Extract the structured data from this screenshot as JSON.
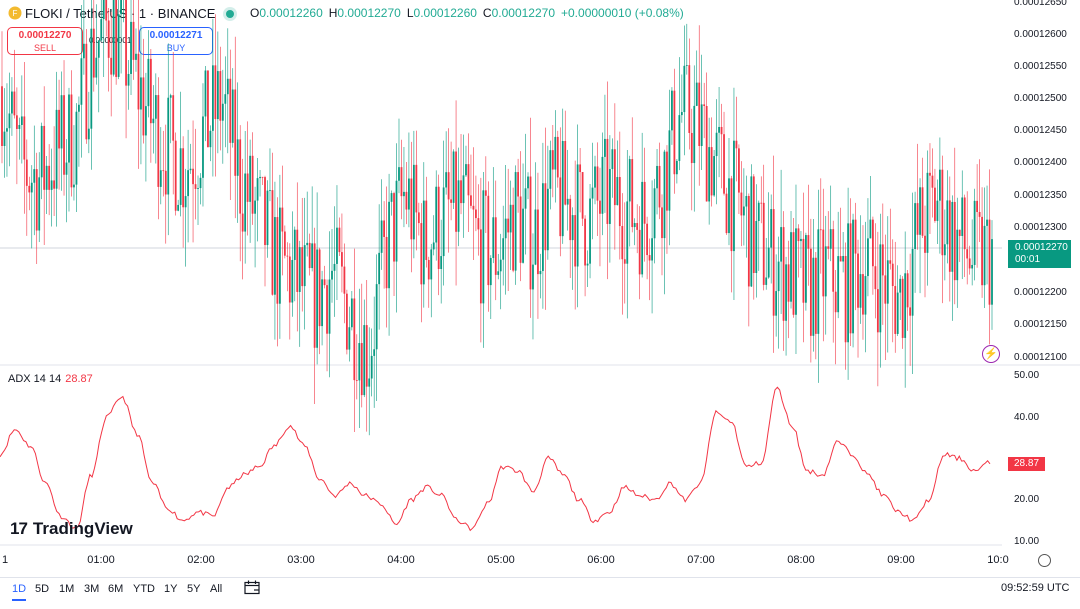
{
  "header": {
    "symbol": "FLOKI / TetherUS · 1 · BINANCE",
    "ohlc": [
      {
        "key": "O",
        "value": "0.00012260"
      },
      {
        "key": "H",
        "value": "0.00012270"
      },
      {
        "key": "L",
        "value": "0.00012260"
      },
      {
        "key": "C",
        "value": "0.00012270"
      }
    ],
    "change": "+0.00000010 (+0.08%)"
  },
  "trade": {
    "sell_price": "0.00012270",
    "sell_label": "SELL",
    "buy_price": "0.00012271",
    "buy_label": "BUY",
    "spread": "0.00000001"
  },
  "price_scale": [
    "0.00012650",
    "0.00012600",
    "0.00012550",
    "0.00012500",
    "0.00012450",
    "0.00012400",
    "0.00012350",
    "0.00012300",
    "0.00012200",
    "0.00012150",
    "0.00012100"
  ],
  "last_price": {
    "price": "0.00012270",
    "countdown": "00:01"
  },
  "indicator": {
    "name": "ADX 14 14",
    "value": "28.87"
  },
  "adx_scale": [
    "50.00",
    "40.00",
    "20.00",
    "10.00"
  ],
  "time_axis": [
    "1",
    "01:00",
    "02:00",
    "03:00",
    "04:00",
    "05:00",
    "06:00",
    "07:00",
    "08:00",
    "09:00",
    "10:0"
  ],
  "branding": "TradingView",
  "toolbar": {
    "ranges": [
      "1D",
      "5D",
      "1M",
      "3M",
      "6M",
      "YTD",
      "1Y",
      "5Y",
      "All"
    ],
    "active_range": "1D",
    "clock": "09:52:59 UTC"
  },
  "colors": {
    "up": "#089981",
    "down": "#f23645",
    "adx": "#f23645",
    "accent": "#2962ff"
  },
  "chart_data": [
    {
      "type": "candlestick",
      "title": "FLOKI / TetherUS · 1 · BINANCE",
      "ylim": [
        0.000121,
        0.0001265
      ],
      "close_series": [
        0.0001252,
        0.000124,
        0.0001238,
        0.0001242,
        0.0001245,
        0.0001258,
        0.0001262,
        0.0001255,
        0.0001248,
        0.0001243,
        0.000124,
        0.0001245,
        0.000125,
        0.0001238,
        0.0001232,
        0.0001226,
        0.0001223,
        0.000122,
        0.0001224,
        0.0001218,
        0.0001212,
        0.0001228,
        0.0001236,
        0.0001228,
        0.0001232,
        0.0001234,
        0.0001228,
        0.0001227,
        0.0001233,
        0.0001229,
        0.0001236,
        0.0001234,
        0.0001232,
        0.0001236,
        0.0001234,
        0.0001232,
        0.0001238,
        0.0001248,
        0.0001246,
        0.000124,
        0.0001235,
        0.0001229,
        0.0001226,
        0.0001224,
        0.0001221,
        0.0001224,
        0.0001222,
        0.0001226,
        0.0001223,
        0.000122,
        0.000123,
        0.0001235,
        0.0001229,
        0.0001226,
        0.0001227
      ],
      "candles_drawn": "approx. 400 one-minute candles"
    },
    {
      "type": "line",
      "title": "ADX 14 14",
      "ylim": [
        10,
        50
      ],
      "series": [
        {
          "name": "ADX 14 14",
          "values": [
            31,
            37,
            33,
            24,
            16,
            13,
            26,
            40,
            45,
            36,
            24,
            18,
            15,
            17,
            16,
            23,
            26,
            28,
            33,
            38,
            33,
            25,
            21,
            24,
            21,
            19,
            14,
            20,
            23,
            21,
            15,
            13,
            19,
            28,
            27,
            22,
            30,
            26,
            20,
            15,
            17,
            23,
            21,
            20,
            24,
            20,
            24,
            41,
            39,
            28,
            29,
            47,
            38,
            27,
            26,
            34,
            31,
            26,
            21,
            17,
            15,
            20,
            31,
            30,
            27,
            29
          ]
        }
      ]
    }
  ]
}
